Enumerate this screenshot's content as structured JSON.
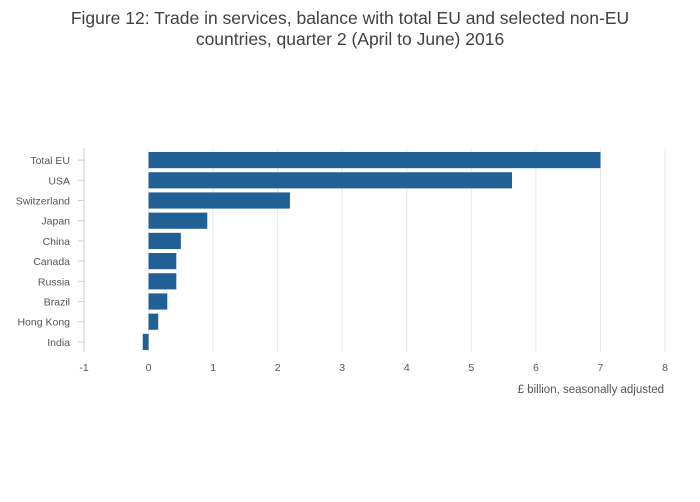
{
  "chart_data": {
    "type": "bar",
    "orientation": "horizontal",
    "title_lines": [
      "Figure 12: Trade in services, balance with total EU and selected non-EU",
      "countries, quarter 2 (April to June) 2016"
    ],
    "xlabel": "£ billion, seasonally adjusted",
    "ylabel": "",
    "xlim": [
      -1,
      8
    ],
    "xticks": [
      -1,
      0,
      1,
      2,
      3,
      4,
      5,
      6,
      7,
      8
    ],
    "categories": [
      "Total EU",
      "USA",
      "Switzerland",
      "Japan",
      "China",
      "Canada",
      "Russia",
      "Brazil",
      "Hong Kong",
      "India"
    ],
    "values": [
      7.0,
      5.63,
      2.19,
      0.91,
      0.5,
      0.43,
      0.43,
      0.29,
      0.15,
      -0.09
    ],
    "bar_color": "#206095",
    "grid": true,
    "legend": "none"
  }
}
